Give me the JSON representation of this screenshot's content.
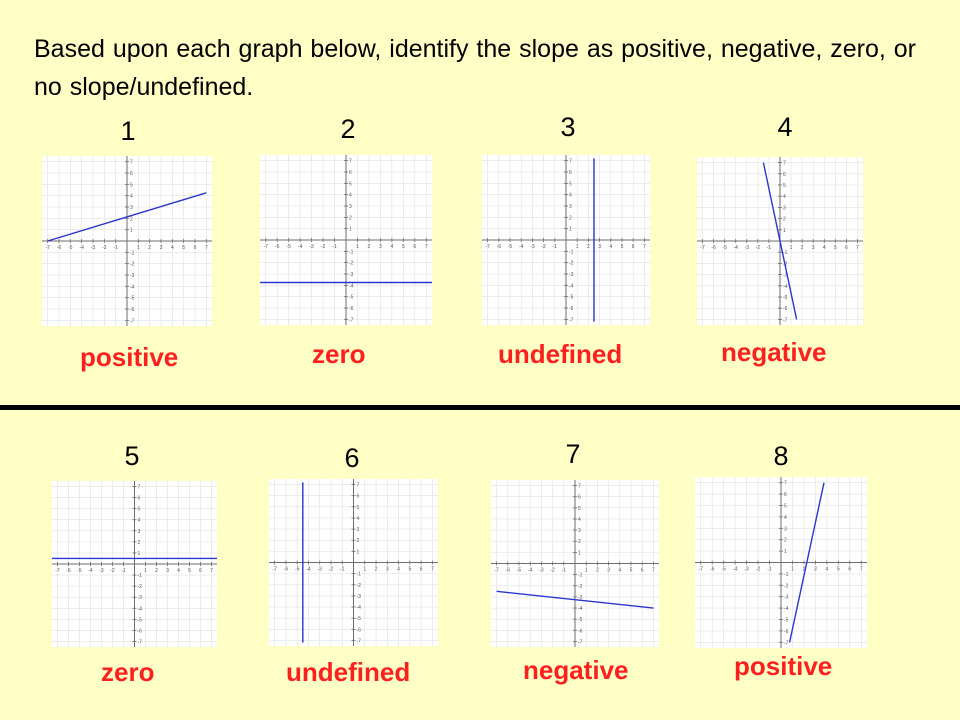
{
  "instructions": "Based upon each graph below, identify the slope as positive, negative, zero, or no slope/undefined.",
  "colors": {
    "background": "#ffffc6",
    "answer": "#ff1f1f",
    "line": "#2b35d0",
    "grid": "#e0e0e0",
    "axis": "#6e6e6e"
  },
  "axis_tick_labels": [
    "-7",
    "-6",
    "-5",
    "-4",
    "-3",
    "-2",
    "-1",
    "1",
    "2",
    "3",
    "4",
    "5",
    "6",
    "7"
  ],
  "graphs": [
    {
      "number": "1",
      "answer": "positive",
      "line": {
        "type": "line",
        "x1": -7,
        "y1": 0,
        "x2": 7,
        "y2": 4.25
      }
    },
    {
      "number": "2",
      "answer": "zero",
      "line": {
        "type": "horizontal",
        "y": -3.75
      }
    },
    {
      "number": "3",
      "answer": "undefined",
      "line": {
        "type": "vertical",
        "x": 2.5
      }
    },
    {
      "number": "4",
      "answer": "negative",
      "line": {
        "type": "line",
        "x1": -1.5,
        "y1": 7,
        "x2": 1.5,
        "y2": -7
      }
    },
    {
      "number": "5",
      "answer": "zero",
      "line": {
        "type": "horizontal",
        "y": 0.5
      }
    },
    {
      "number": "6",
      "answer": "undefined",
      "line": {
        "type": "vertical",
        "x": -4.5
      }
    },
    {
      "number": "7",
      "answer": "negative",
      "line": {
        "type": "line",
        "x1": -7,
        "y1": -2.5,
        "x2": 7,
        "y2": -4
      }
    },
    {
      "number": "8",
      "answer": "positive",
      "line": {
        "type": "line",
        "x1": 0.75,
        "y1": -7,
        "x2": 3.75,
        "y2": 7
      }
    }
  ]
}
